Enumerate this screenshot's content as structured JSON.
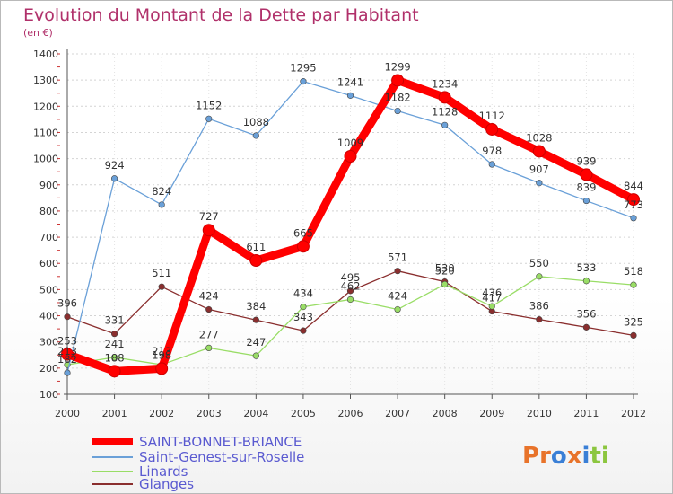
{
  "title": "Evolution du Montant de la Dette par Habitant",
  "unit": "(en €)",
  "logo": {
    "letters": [
      "P",
      "r",
      "o",
      "x",
      "i",
      "t",
      "i"
    ],
    "colors": [
      "#e8732a",
      "#e8732a",
      "#3a7fd6",
      "#e8732a",
      "#3a7fd6",
      "#8cc63f",
      "#8cc63f"
    ]
  },
  "chart_data": {
    "type": "line",
    "title": "Evolution du Montant de la Dette par Habitant",
    "ylabel": "(en €)",
    "xlabel": "",
    "x": [
      "2000",
      "2001",
      "2002",
      "2003",
      "2004",
      "2005",
      "2006",
      "2007",
      "2008",
      "2009",
      "2010",
      "2011",
      "2012"
    ],
    "ylim": [
      100,
      1400
    ],
    "yticks": [
      "100",
      "200",
      "300",
      "400",
      "500",
      "600",
      "700",
      "800",
      "900",
      "1000",
      "1100",
      "1200",
      "1300",
      "1400"
    ],
    "grid": "horizontal dashed",
    "legend": "bottom-left",
    "series": [
      {
        "name": "SAINT-BONNET-BRIANCE",
        "color": "#ff0000",
        "values": [
          253,
          188,
          198,
          727,
          611,
          665,
          1009,
          1299,
          1234,
          1112,
          1028,
          939,
          844
        ],
        "labels": [
          "253",
          "188",
          "198",
          "727",
          "611",
          "665",
          "1009",
          "1299",
          "1234",
          "1112",
          "1028",
          "939",
          "844"
        ]
      },
      {
        "name": "Saint-Genest-sur-Roselle",
        "color": "#6aa0d8",
        "values": [
          182,
          924,
          824,
          1152,
          1088,
          1295,
          1241,
          1182,
          1128,
          978,
          907,
          839,
          773
        ],
        "labels": [
          "182",
          "924",
          "824",
          "1152",
          "1088",
          "1295",
          "1241",
          "1182",
          "1128",
          "978",
          "907",
          "839",
          "773"
        ]
      },
      {
        "name": "Linards",
        "color": "#99dd66",
        "values": [
          213,
          241,
          213,
          277,
          247,
          434,
          462,
          424,
          520,
          436,
          550,
          533,
          518
        ],
        "labels": [
          "213",
          "241",
          "213",
          "277",
          "247",
          "434",
          "462",
          "424",
          "520",
          "436",
          "550",
          "533",
          "518"
        ]
      },
      {
        "name": "Glanges",
        "color": "#8a2e2e",
        "values": [
          396,
          331,
          511,
          424,
          384,
          343,
          495,
          571,
          530,
          417,
          386,
          356,
          325
        ],
        "labels": [
          "396",
          "331",
          "511",
          "424",
          "384",
          "343",
          "495",
          "571",
          "530",
          "417",
          "386",
          "356",
          "325"
        ]
      }
    ]
  }
}
